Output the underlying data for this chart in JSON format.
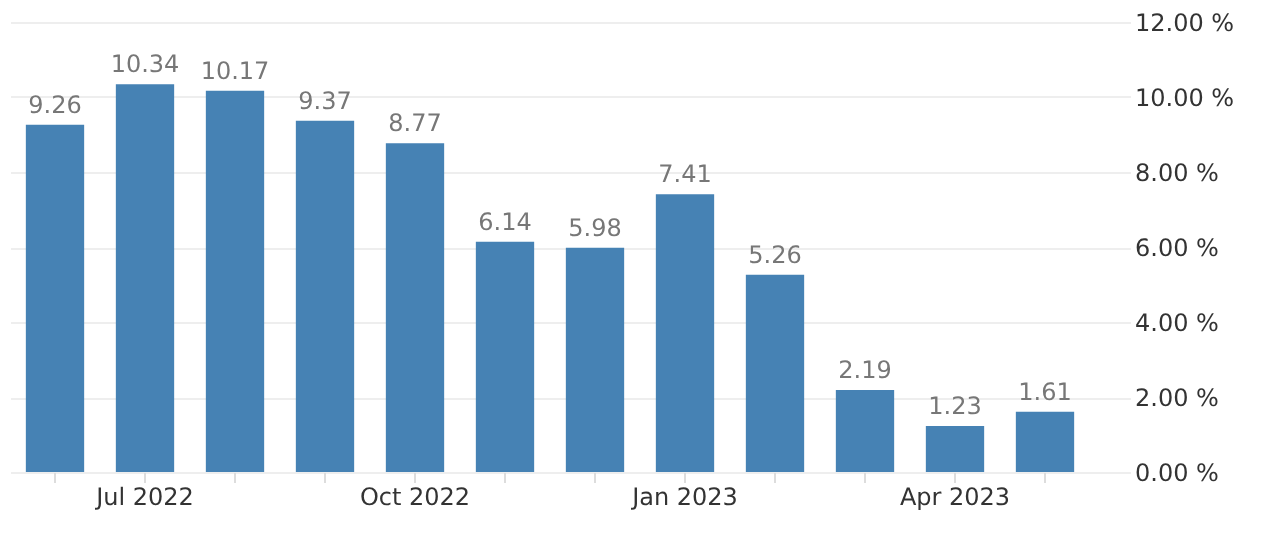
{
  "chart_data": {
    "type": "bar",
    "categories": [
      null,
      "Jul 2022",
      null,
      null,
      "Oct 2022",
      null,
      null,
      "Jan 2023",
      null,
      null,
      "Apr 2023",
      null
    ],
    "values": [
      9.26,
      10.34,
      10.17,
      9.37,
      8.77,
      6.14,
      5.98,
      7.41,
      5.26,
      2.19,
      1.23,
      1.61
    ],
    "color": "#4682b4",
    "ylim": [
      0,
      12
    ],
    "yticks": [
      {
        "value": 0,
        "label": "0.00 %"
      },
      {
        "value": 2,
        "label": "2.00 %"
      },
      {
        "value": 4,
        "label": "4.00 %"
      },
      {
        "value": 6,
        "label": "6.00 %"
      },
      {
        "value": 8,
        "label": "8.00 %"
      },
      {
        "value": 10,
        "label": "10.00 %"
      },
      {
        "value": 12,
        "label": "12.00 %"
      }
    ],
    "grid": "y",
    "data_labels": true
  }
}
